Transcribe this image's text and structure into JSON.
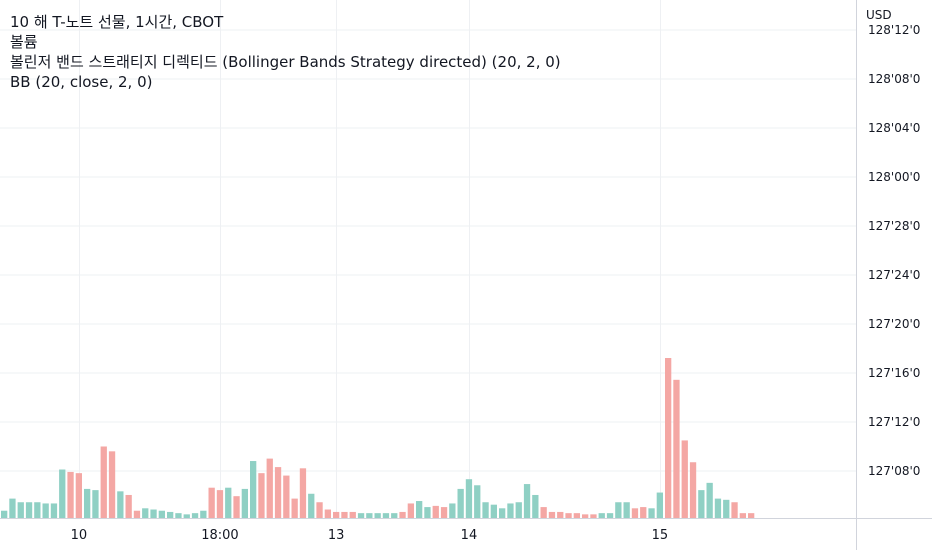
{
  "legend": {
    "symbol_line": "10 해 T-노트 선물, 1시간, CBOT",
    "volume_line": "볼륨",
    "strategy_line": "볼린저 밴드 스트래티지 디렉티드 (Bollinger Bands Strategy directed) (20, 2, 0)",
    "bb_line": "BB (20, close, 2, 0)"
  },
  "colors": {
    "up": "#8fd0c4",
    "down": "#f4a7a4",
    "grid": "#eef0f3",
    "axis_border": "#d1d4dc",
    "text": "#131722"
  },
  "chart_data": {
    "type": "bar",
    "currency_label": "USD",
    "price_axis_ticks": [
      "128'12'0",
      "128'08'0",
      "128'04'0",
      "128'00'0",
      "127'28'0",
      "127'24'0",
      "127'20'0",
      "127'16'0",
      "127'12'0",
      "127'08'0"
    ],
    "time_axis_ticks": [
      {
        "label": "10",
        "index": 9
      },
      {
        "label": "18:00",
        "index": 26
      },
      {
        "label": "13",
        "index": 40
      },
      {
        "label": "14",
        "index": 56
      },
      {
        "label": "15",
        "index": 79
      }
    ],
    "volume_series": {
      "name": "볼륨",
      "values": [
        6,
        16,
        13,
        13,
        13,
        12,
        12,
        40,
        38,
        37,
        24,
        23,
        59,
        55,
        22,
        19,
        6,
        8,
        7,
        6,
        5,
        4,
        3,
        4,
        6,
        25,
        23,
        25,
        18,
        24,
        47,
        37,
        49,
        42,
        35,
        16,
        41,
        20,
        13,
        7,
        5,
        5,
        5,
        4,
        4,
        4,
        4,
        4,
        5,
        12,
        14,
        9,
        10,
        9,
        12,
        24,
        32,
        27,
        13,
        11,
        8,
        12,
        13,
        28,
        19,
        9,
        5,
        5,
        4,
        4,
        3,
        3,
        4,
        4,
        13,
        13,
        8,
        9,
        8,
        21,
        132,
        114,
        64,
        46,
        23,
        29,
        16,
        15,
        13,
        4,
        4
      ],
      "directions": [
        "u",
        "u",
        "u",
        "u",
        "u",
        "u",
        "u",
        "u",
        "d",
        "d",
        "u",
        "u",
        "d",
        "d",
        "u",
        "d",
        "d",
        "u",
        "u",
        "u",
        "u",
        "u",
        "u",
        "u",
        "u",
        "d",
        "d",
        "u",
        "d",
        "u",
        "u",
        "d",
        "d",
        "d",
        "d",
        "d",
        "d",
        "u",
        "d",
        "d",
        "d",
        "d",
        "d",
        "u",
        "u",
        "u",
        "u",
        "u",
        "d",
        "d",
        "u",
        "u",
        "d",
        "d",
        "u",
        "u",
        "u",
        "u",
        "u",
        "u",
        "u",
        "u",
        "u",
        "u",
        "u",
        "d",
        "d",
        "d",
        "d",
        "d",
        "d",
        "d",
        "u",
        "u",
        "u",
        "u",
        "d",
        "d",
        "u",
        "u",
        "d",
        "d",
        "d",
        "d",
        "u",
        "u",
        "u",
        "u",
        "d",
        "d",
        "d"
      ]
    }
  }
}
